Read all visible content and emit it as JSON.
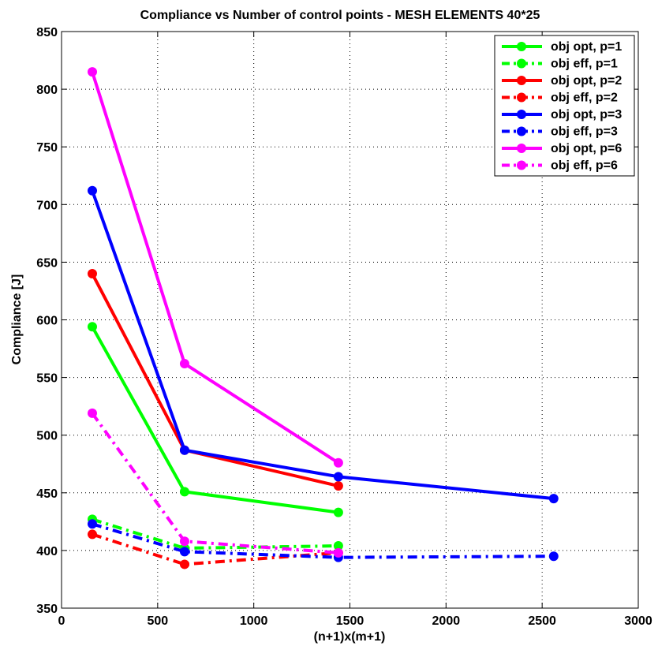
{
  "chart_data": {
    "type": "line",
    "title": "Compliance vs Number of control points - MESH ELEMENTS 40*25",
    "xlabel": "(n+1)x(m+1)",
    "ylabel": "Compliance [J]",
    "xlim": [
      0,
      3000
    ],
    "ylim": [
      350,
      850
    ],
    "xticks": [
      "0",
      "500",
      "1000",
      "1500",
      "2000",
      "2500",
      "3000"
    ],
    "yticks": [
      "350",
      "400",
      "450",
      "500",
      "550",
      "600",
      "650",
      "700",
      "750",
      "800",
      "850"
    ],
    "grid": true,
    "legend_position": "top-right",
    "series": [
      {
        "name": "obj opt, p=1",
        "color": "#00ff00",
        "dash": "solid",
        "x": [
          160,
          640,
          1440
        ],
        "y": [
          594,
          451,
          433
        ]
      },
      {
        "name": "obj eff, p=1",
        "color": "#00ff00",
        "dash": "dashdot",
        "x": [
          160,
          640,
          1440
        ],
        "y": [
          427,
          402,
          404
        ]
      },
      {
        "name": "obj opt, p=2",
        "color": "#ff0000",
        "dash": "solid",
        "x": [
          160,
          640,
          1440
        ],
        "y": [
          640,
          487,
          456
        ]
      },
      {
        "name": "obj eff, p=2",
        "color": "#ff0000",
        "dash": "dashdot",
        "x": [
          160,
          640,
          1440
        ],
        "y": [
          414,
          388,
          398
        ]
      },
      {
        "name": "obj opt, p=3",
        "color": "#0000ff",
        "dash": "solid",
        "x": [
          160,
          640,
          1440,
          2560
        ],
        "y": [
          712,
          487,
          464,
          445
        ]
      },
      {
        "name": "obj eff, p=3",
        "color": "#0000ff",
        "dash": "dashdot",
        "x": [
          160,
          640,
          1440,
          2560
        ],
        "y": [
          423,
          399,
          394,
          395
        ]
      },
      {
        "name": "obj opt, p=6",
        "color": "#ff00ff",
        "dash": "solid",
        "x": [
          160,
          640,
          1440
        ],
        "y": [
          815,
          562,
          476
        ]
      },
      {
        "name": "obj eff, p=6",
        "color": "#ff00ff",
        "dash": "dashdot",
        "x": [
          160,
          640,
          1440
        ],
        "y": [
          519,
          408,
          398
        ]
      }
    ]
  }
}
